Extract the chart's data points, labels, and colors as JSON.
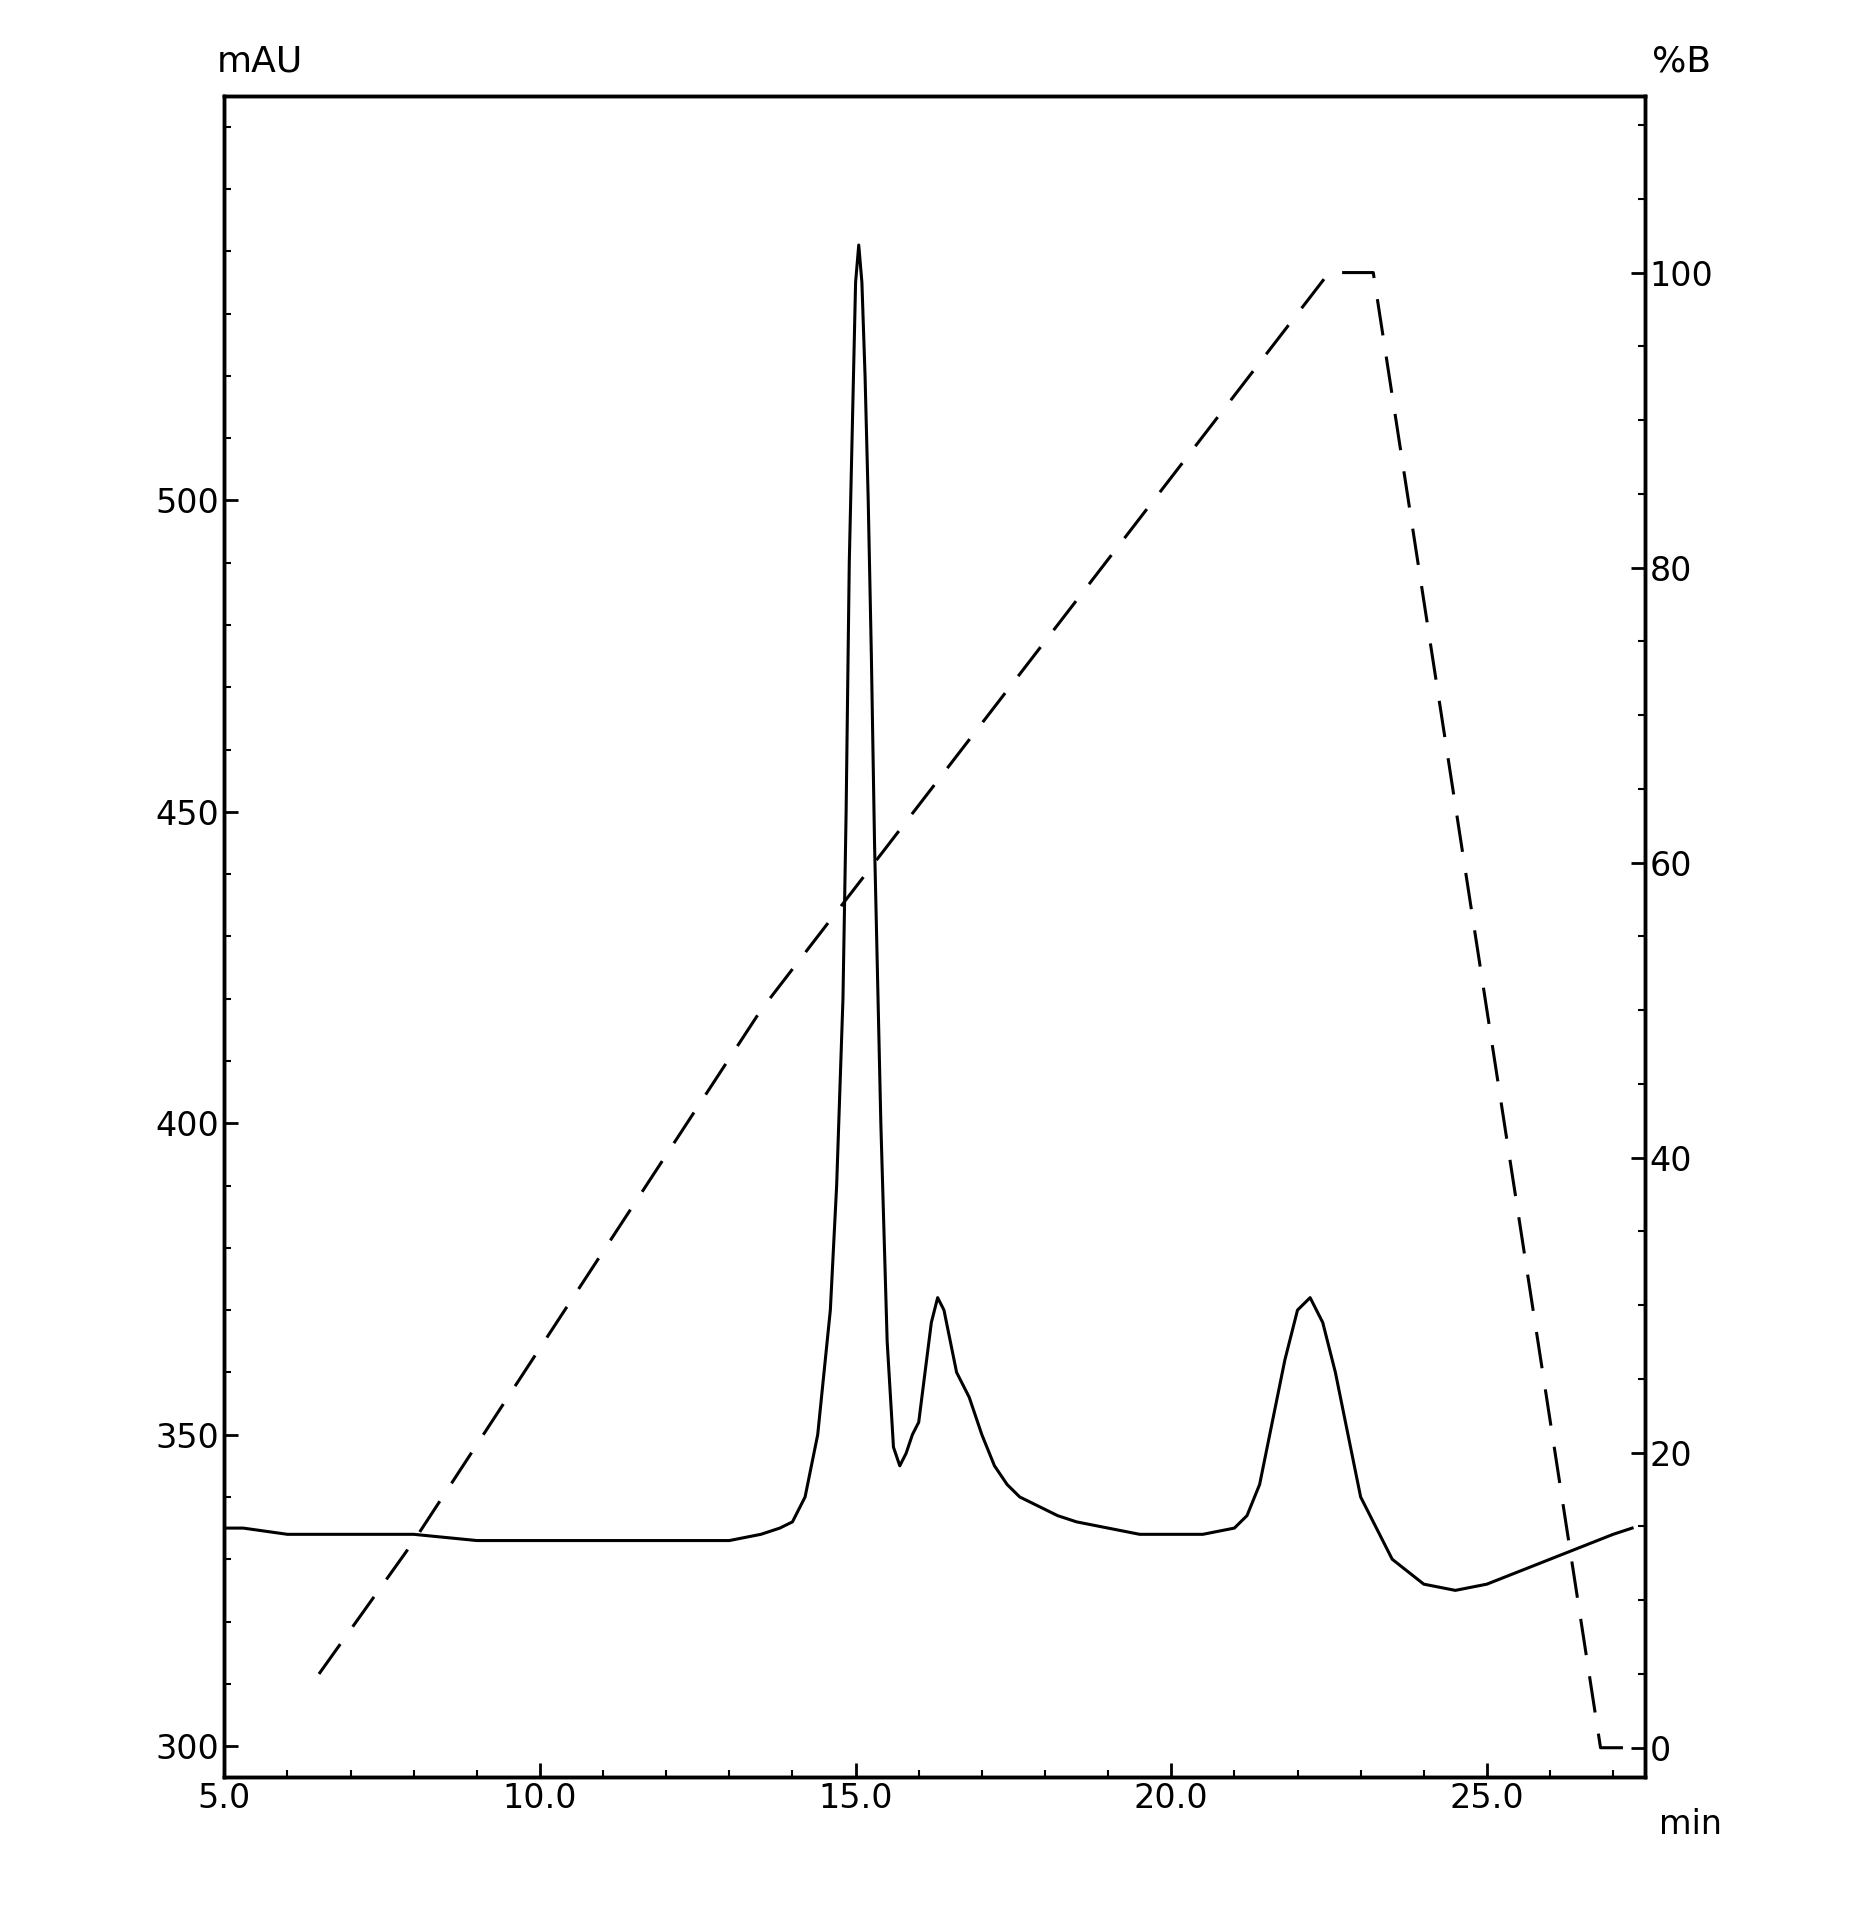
{
  "left_ylabel": "mAU",
  "right_ylabel": "%B",
  "xlabel": "min",
  "xlim": [
    5.0,
    27.5
  ],
  "ylim_left": [
    295,
    565
  ],
  "ylim_right": [
    -2,
    112
  ],
  "left_yticks": [
    300,
    350,
    400,
    450,
    500
  ],
  "right_yticks": [
    0,
    20,
    40,
    60,
    80,
    100
  ],
  "xticks": [
    5.0,
    10.0,
    15.0,
    20.0,
    25.0
  ],
  "line_color": "#000000",
  "background_color": "#ffffff",
  "solid_line": {
    "x": [
      5.0,
      5.3,
      6.0,
      7.0,
      8.0,
      9.0,
      10.0,
      11.0,
      12.0,
      13.0,
      13.5,
      13.8,
      14.0,
      14.2,
      14.4,
      14.6,
      14.7,
      14.8,
      14.85,
      14.9,
      15.0,
      15.05,
      15.1,
      15.15,
      15.2,
      15.25,
      15.3,
      15.4,
      15.5,
      15.6,
      15.7,
      15.8,
      15.9,
      16.0,
      16.1,
      16.2,
      16.3,
      16.4,
      16.5,
      16.6,
      16.7,
      16.8,
      17.0,
      17.2,
      17.4,
      17.6,
      17.8,
      18.0,
      18.2,
      18.5,
      19.0,
      19.5,
      20.0,
      20.5,
      21.0,
      21.2,
      21.4,
      21.6,
      21.8,
      22.0,
      22.2,
      22.4,
      22.6,
      22.8,
      23.0,
      23.5,
      24.0,
      24.5,
      25.0,
      25.5,
      26.0,
      26.5,
      27.0,
      27.3
    ],
    "y": [
      335,
      335,
      334,
      334,
      334,
      333,
      333,
      333,
      333,
      333,
      334,
      335,
      336,
      340,
      350,
      370,
      390,
      420,
      450,
      490,
      535,
      541,
      535,
      520,
      500,
      475,
      445,
      400,
      365,
      348,
      345,
      347,
      350,
      352,
      360,
      368,
      372,
      370,
      365,
      360,
      358,
      356,
      350,
      345,
      342,
      340,
      339,
      338,
      337,
      336,
      335,
      334,
      334,
      334,
      335,
      337,
      342,
      352,
      362,
      370,
      372,
      368,
      360,
      350,
      340,
      330,
      326,
      325,
      326,
      328,
      330,
      332,
      334,
      335
    ]
  },
  "dashed_line": {
    "x": [
      6.5,
      8.0,
      13.5,
      22.5,
      23.2,
      26.8,
      27.3
    ],
    "y": [
      5,
      14,
      50,
      100,
      100,
      0,
      0
    ]
  }
}
